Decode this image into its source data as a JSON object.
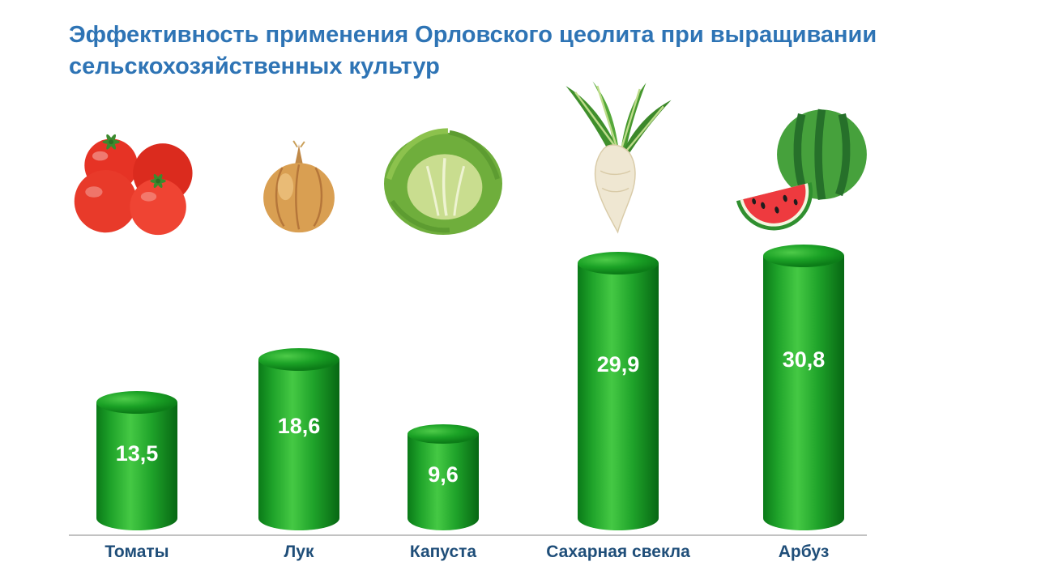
{
  "slide": {
    "background": "#ffffff"
  },
  "title": {
    "line1": "Эффективность применения Орловского цеолита при выращивании",
    "line2": "сельскохозяйственных культур"
  },
  "chart_data": {
    "type": "bar",
    "title": "Эффективность применения Орловского цеолита при выращивании сельскохозяйственных культур",
    "categories": [
      "Томаты",
      "Лук",
      "Капуста",
      "Сахарная свекла",
      "Арбуз"
    ],
    "values": [
      13.5,
      18.6,
      9.6,
      29.9,
      30.8
    ],
    "value_labels": [
      "13,5",
      "18,6",
      "9,6",
      "29,9",
      "30,8"
    ],
    "xlabel": "",
    "ylabel": "",
    "ylim": [
      0,
      35
    ],
    "grid": false,
    "legend": "none",
    "bar_style": "3d-cylinder",
    "bar_color": "#1fa32a",
    "icons": [
      "tomatoes",
      "onion",
      "cabbage",
      "sugar-beet",
      "watermelon"
    ]
  },
  "colors": {
    "title_text": "#2e74b5",
    "category_text": "#1f4e79",
    "bar_green": "#1fa32a",
    "bar_green_dark": "#0a7a18",
    "bar_green_light": "#45c944",
    "value_text": "#ffffff",
    "baseline": "#c2c2c2",
    "background": "#ffffff"
  }
}
